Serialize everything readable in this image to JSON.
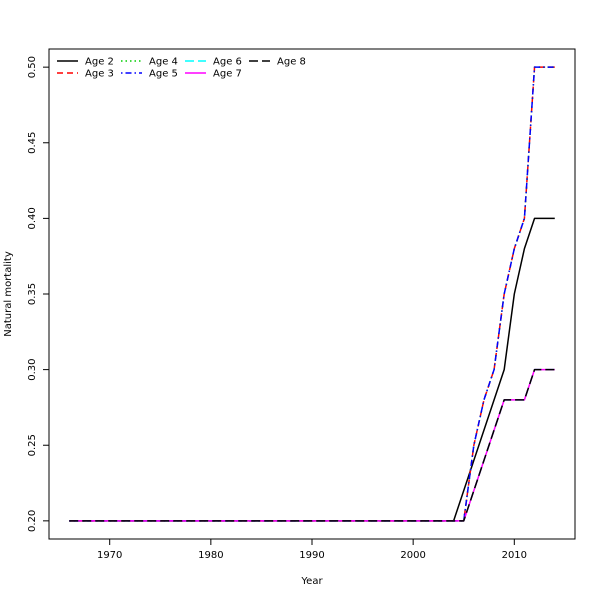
{
  "chart_data": {
    "type": "line",
    "title": "",
    "xlabel": "Year",
    "ylabel": "Natural mortality",
    "xlim": [
      1964,
      2016
    ],
    "ylim": [
      0.188,
      0.512
    ],
    "xticks": [
      1970,
      1980,
      1990,
      2000,
      2010
    ],
    "yticks": [
      0.2,
      0.25,
      0.3,
      0.35,
      0.4,
      0.45,
      0.5
    ],
    "ytick_labels": [
      "0.20",
      "0.25",
      "0.30",
      "0.35",
      "0.40",
      "0.45",
      "0.50"
    ],
    "grid": false,
    "legend_position": "top-left",
    "series": [
      {
        "name": "Age 2",
        "color": "#000000",
        "linestyle": "solid",
        "x": [
          1966,
          2004,
          2009,
          2010,
          2011,
          2012,
          2014
        ],
        "y": [
          0.2,
          0.2,
          0.3,
          0.35,
          0.38,
          0.4,
          0.4
        ]
      },
      {
        "name": "Age 3",
        "color": "#ff0000",
        "linestyle": "dashed",
        "x": [
          1966,
          2005,
          2006,
          2007,
          2008,
          2009,
          2010,
          2011,
          2012,
          2014
        ],
        "y": [
          0.2,
          0.2,
          0.25,
          0.28,
          0.3,
          0.35,
          0.38,
          0.4,
          0.5,
          0.5
        ]
      },
      {
        "name": "Age 4",
        "color": "#00cd00",
        "linestyle": "dotted",
        "x": [
          1966,
          2005,
          2006,
          2007,
          2008,
          2009,
          2010,
          2011,
          2012,
          2014
        ],
        "y": [
          0.2,
          0.2,
          0.25,
          0.28,
          0.3,
          0.35,
          0.38,
          0.4,
          0.5,
          0.5
        ]
      },
      {
        "name": "Age 5",
        "color": "#0000ff",
        "linestyle": "dotdash",
        "x": [
          1966,
          2005,
          2006,
          2007,
          2008,
          2009,
          2010,
          2011,
          2012,
          2014
        ],
        "y": [
          0.2,
          0.2,
          0.25,
          0.28,
          0.3,
          0.35,
          0.38,
          0.4,
          0.5,
          0.5
        ]
      },
      {
        "name": "Age 6",
        "color": "#00ffff",
        "linestyle": "longdash",
        "x": [
          1966,
          2005,
          2009,
          2011,
          2012,
          2014
        ],
        "y": [
          0.2,
          0.2,
          0.28,
          0.28,
          0.3,
          0.3
        ]
      },
      {
        "name": "Age 7",
        "color": "#ff00ff",
        "linestyle": "solid",
        "x": [
          1966,
          2005,
          2009,
          2011,
          2012,
          2014
        ],
        "y": [
          0.2,
          0.2,
          0.28,
          0.28,
          0.3,
          0.3
        ]
      },
      {
        "name": "Age 8",
        "color": "#000000",
        "linestyle": "longdash",
        "x": [
          1966,
          2005,
          2009,
          2011,
          2012,
          2014
        ],
        "y": [
          0.2,
          0.2,
          0.28,
          0.28,
          0.3,
          0.3
        ]
      }
    ]
  }
}
